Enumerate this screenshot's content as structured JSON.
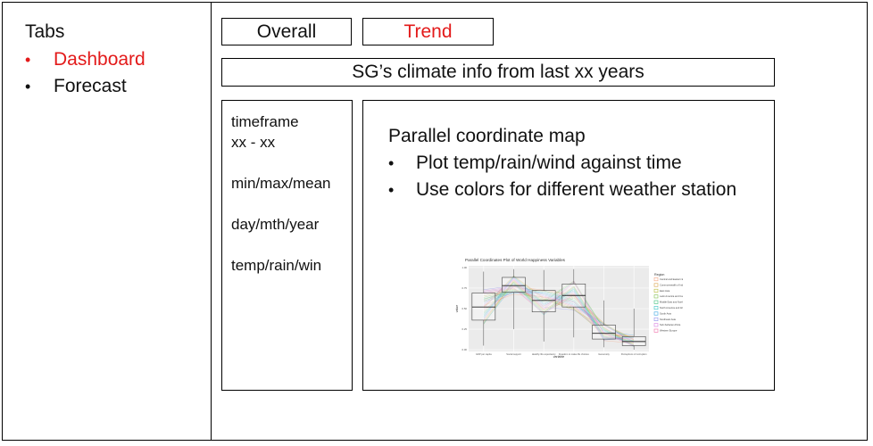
{
  "sidebar": {
    "heading": "Tabs",
    "items": [
      {
        "label": "Dashboard",
        "active": true
      },
      {
        "label": "Forecast",
        "active": false
      }
    ]
  },
  "tabs": [
    {
      "label": "Overall",
      "active": false
    },
    {
      "label": "Trend",
      "active": true
    }
  ],
  "header": {
    "title": "SG’s climate info from last xx years"
  },
  "filters": {
    "timeframe_label": "timeframe",
    "timeframe_value": "xx - xx",
    "stat": "min/max/mean",
    "period": "day/mth/year",
    "variable": "temp/rain/win"
  },
  "content": {
    "title": "Parallel coordinate map",
    "bullets": [
      "Plot temp/rain/wind against time",
      "Use colors for different weather station"
    ]
  },
  "accent_color": "#e31a1a",
  "chart_data": {
    "type": "box",
    "title": "Parallel Coordinates Plot of World Happiness Variables",
    "xlabel": "variable",
    "ylabel": "value",
    "categories": [
      "GDP per capita",
      "Social support",
      "Healthy life expectancy",
      "Freedom to make life choices",
      "Generosity",
      "Perceptions of corruption"
    ],
    "box_stats": [
      {
        "min": 0.05,
        "q1": 0.36,
        "median": 0.52,
        "q3": 0.69,
        "max": 0.95
      },
      {
        "min": 0.25,
        "q1": 0.7,
        "median": 0.78,
        "q3": 0.88,
        "max": 0.98
      },
      {
        "min": 0.1,
        "q1": 0.46,
        "median": 0.6,
        "q3": 0.72,
        "max": 0.97
      },
      {
        "min": 0.15,
        "q1": 0.52,
        "median": 0.66,
        "q3": 0.8,
        "max": 0.98
      },
      {
        "min": 0.03,
        "q1": 0.13,
        "median": 0.2,
        "q3": 0.3,
        "max": 0.6
      },
      {
        "min": 0.0,
        "q1": 0.05,
        "median": 0.1,
        "q3": 0.16,
        "max": 0.5
      }
    ],
    "ylim": [
      0,
      1
    ],
    "legend_title": "Region",
    "legend": [
      {
        "name": "Central and Eastern Europe",
        "color": "#f4a582"
      },
      {
        "name": "Commonwealth of Independent States",
        "color": "#d8a24a"
      },
      {
        "name": "East Asia",
        "color": "#b5b83a"
      },
      {
        "name": "Latin America and Caribbean",
        "color": "#7fbf4d"
      },
      {
        "name": "Middle East and North Africa",
        "color": "#3dbf7a"
      },
      {
        "name": "North America and ANZ",
        "color": "#33c1c1"
      },
      {
        "name": "South Asia",
        "color": "#3aa6e0"
      },
      {
        "name": "Southeast Asia",
        "color": "#8d8de8"
      },
      {
        "name": "Sub-Saharan Africa",
        "color": "#d77fe0"
      },
      {
        "name": "Western Europe",
        "color": "#f06ea9"
      }
    ],
    "legend_position": "right"
  }
}
